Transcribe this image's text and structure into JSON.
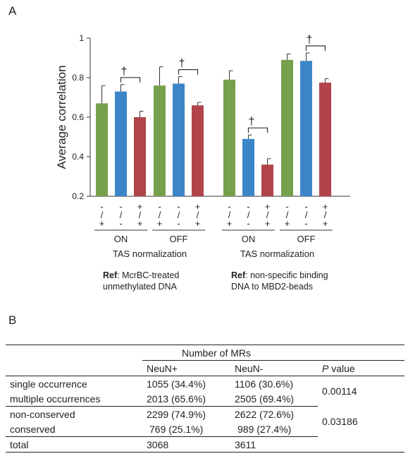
{
  "panel_a_label": "A",
  "panel_b_label": "B",
  "colors": {
    "green": "#76a04b",
    "blue": "#3c86c8",
    "red": "#b1444a"
  },
  "chart_data": {
    "type": "bar",
    "ylabel": "Average correlation",
    "ylim": [
      0.2,
      1.0
    ],
    "yticks": [
      "0.2",
      "0.4",
      "0.6",
      "0.8",
      "1"
    ],
    "groups": [
      {
        "ref_bold": "Ref",
        "ref_text_1": ": McrBC-treated",
        "ref_text_2": "unmethylated DNA",
        "axis_caption": "TAS normalization",
        "subgroups": [
          {
            "label": "ON",
            "bars": [
              {
                "color": "green",
                "value": 0.67,
                "error": 0.09,
                "sym": [
                  "-",
                  "/",
                  "+"
                ]
              },
              {
                "color": "blue",
                "value": 0.73,
                "error": 0.035,
                "sym": [
                  "-",
                  "/",
                  "-"
                ]
              },
              {
                "color": "red",
                "value": 0.6,
                "error": 0.03,
                "sym": [
                  "+",
                  "/",
                  "+"
                ]
              }
            ],
            "dagger": "†"
          },
          {
            "label": "OFF",
            "bars": [
              {
                "color": "green",
                "value": 0.76,
                "error": 0.095,
                "sym": [
                  "-",
                  "/",
                  "+"
                ]
              },
              {
                "color": "blue",
                "value": 0.77,
                "error": 0.035,
                "sym": [
                  "-",
                  "/",
                  "-"
                ]
              },
              {
                "color": "red",
                "value": 0.66,
                "error": 0.015,
                "sym": [
                  "+",
                  "/",
                  "+"
                ]
              }
            ],
            "dagger": "†"
          }
        ]
      },
      {
        "ref_bold": "Ref",
        "ref_text_1": ": non-specific binding",
        "ref_text_2": "DNA to MBD2-beads",
        "axis_caption": "TAS normalization",
        "subgroups": [
          {
            "label": "ON",
            "bars": [
              {
                "color": "green",
                "value": 0.79,
                "error": 0.045,
                "sym": [
                  "-",
                  "/",
                  "+"
                ]
              },
              {
                "color": "blue",
                "value": 0.49,
                "error": 0.02,
                "sym": [
                  "-",
                  "/",
                  "-"
                ]
              },
              {
                "color": "red",
                "value": 0.36,
                "error": 0.03,
                "sym": [
                  "+",
                  "/",
                  "+"
                ]
              }
            ],
            "dagger": "†"
          },
          {
            "label": "OFF",
            "bars": [
              {
                "color": "green",
                "value": 0.89,
                "error": 0.03,
                "sym": [
                  "-",
                  "/",
                  "+"
                ]
              },
              {
                "color": "blue",
                "value": 0.885,
                "error": 0.04,
                "sym": [
                  "-",
                  "/",
                  "-"
                ]
              },
              {
                "color": "red",
                "value": 0.775,
                "error": 0.02,
                "sym": [
                  "+",
                  "/",
                  "+"
                ]
              }
            ],
            "dagger": "†"
          }
        ]
      }
    ]
  },
  "table": {
    "header_group": "Number of MRs",
    "col_neunp": "NeuN+",
    "col_neunm": "NeuN-",
    "col_p_italic": "P",
    "col_p_rest": " value",
    "rows": [
      {
        "label": "single occurrence",
        "neunp": "1055 (34.4%)",
        "neunm": "1106 (30.6%)"
      },
      {
        "label": "multiple occurrences",
        "neunp": "2013 (65.6%)",
        "neunm": "2505 (69.4%)"
      },
      {
        "label": "non-conserved",
        "neunp": "2299 (74.9%)",
        "neunm": "2622 (72.6%)"
      },
      {
        "label": "conserved",
        "neunp": "769 (25.1%)",
        "neunm": "989 (27.4%)"
      },
      {
        "label": "total",
        "neunp": "3068",
        "neunm": "3611"
      }
    ],
    "p_values": [
      "0.00114",
      "0.03186"
    ]
  }
}
